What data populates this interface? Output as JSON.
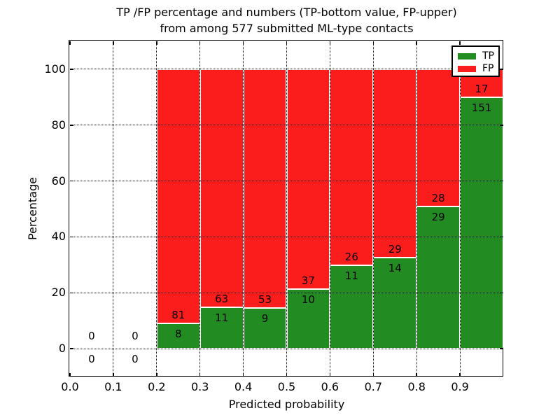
{
  "chart_data": {
    "type": "bar",
    "stacked": true,
    "title_line1": "TP /FP percentage and numbers (TP-bottom value, FP-upper)",
    "title_line2": "from among 577 submitted ML-type contacts",
    "xlabel": "Predicted probability",
    "ylabel": "Percentage",
    "total_contacts": 577,
    "xlim": [
      0.0,
      1.0
    ],
    "ylim": [
      -10,
      110
    ],
    "x_ticks": [
      0.0,
      0.1,
      0.2,
      0.3,
      0.4,
      0.5,
      0.6,
      0.7,
      0.8,
      0.9
    ],
    "x_tick_labels": [
      "0.0",
      "0.1",
      "0.2",
      "0.3",
      "0.4",
      "0.5",
      "0.6",
      "0.7",
      "0.8",
      "0.9"
    ],
    "y_ticks": [
      0,
      20,
      40,
      60,
      80,
      100
    ],
    "y_tick_labels": [
      "0",
      "20",
      "40",
      "60",
      "80",
      "100"
    ],
    "grid": true,
    "legend_position": "upper right",
    "legend": [
      {
        "label": "TP",
        "color": "#228b22"
      },
      {
        "label": "FP",
        "color": "#fb1c1c"
      }
    ],
    "bins": [
      {
        "range": [
          0.0,
          0.1
        ],
        "tp_count": 0,
        "fp_count": 0,
        "tp_pct": 0,
        "fp_pct": 0
      },
      {
        "range": [
          0.1,
          0.2
        ],
        "tp_count": 0,
        "fp_count": 0,
        "tp_pct": 0,
        "fp_pct": 0
      },
      {
        "range": [
          0.2,
          0.3
        ],
        "tp_count": 8,
        "fp_count": 81,
        "tp_pct": 8.99,
        "fp_pct": 91.01
      },
      {
        "range": [
          0.3,
          0.4
        ],
        "tp_count": 11,
        "fp_count": 63,
        "tp_pct": 14.86,
        "fp_pct": 85.14
      },
      {
        "range": [
          0.4,
          0.5
        ],
        "tp_count": 9,
        "fp_count": 53,
        "tp_pct": 14.52,
        "fp_pct": 85.48
      },
      {
        "range": [
          0.5,
          0.6
        ],
        "tp_count": 10,
        "fp_count": 37,
        "tp_pct": 21.28,
        "fp_pct": 78.72
      },
      {
        "range": [
          0.6,
          0.7
        ],
        "tp_count": 11,
        "fp_count": 26,
        "tp_pct": 29.73,
        "fp_pct": 70.27
      },
      {
        "range": [
          0.7,
          0.8
        ],
        "tp_count": 14,
        "fp_count": 29,
        "tp_pct": 32.56,
        "fp_pct": 67.44
      },
      {
        "range": [
          0.8,
          0.9
        ],
        "tp_count": 29,
        "fp_count": 28,
        "tp_pct": 50.88,
        "fp_pct": 49.12
      },
      {
        "range": [
          0.9,
          1.0
        ],
        "tp_count": 151,
        "fp_count": 17,
        "tp_pct": 89.88,
        "fp_pct": 10.12
      }
    ]
  }
}
